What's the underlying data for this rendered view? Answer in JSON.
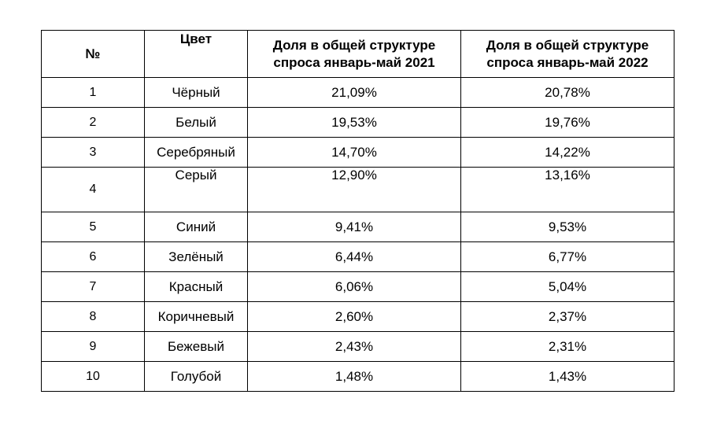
{
  "table": {
    "headers": [
      "№",
      "Цвет",
      "Доля в общей структуре спроса январь-май 2021",
      "Доля в общей структуре спроса январь-май 2022"
    ],
    "rows": [
      {
        "n": "1",
        "color": "Чёрный",
        "y2021": "21,09%",
        "y2022": "20,78%"
      },
      {
        "n": "2",
        "color": "Белый",
        "y2021": "19,53%",
        "y2022": "19,76%"
      },
      {
        "n": "3",
        "color": "Серебряный",
        "y2021": "14,70%",
        "y2022": "14,22%"
      },
      {
        "n": "4",
        "color": "Серый",
        "y2021": "12,90%",
        "y2022": "13,16%"
      },
      {
        "n": "5",
        "color": "Синий",
        "y2021": "9,41%",
        "y2022": "9,53%"
      },
      {
        "n": "6",
        "color": "Зелёный",
        "y2021": "6,44%",
        "y2022": "6,77%"
      },
      {
        "n": "7",
        "color": "Красный",
        "y2021": "6,06%",
        "y2022": "5,04%"
      },
      {
        "n": "8",
        "color": "Коричневый",
        "y2021": "2,60%",
        "y2022": "2,37%"
      },
      {
        "n": "9",
        "color": "Бежевый",
        "y2021": "2,43%",
        "y2022": "2,31%"
      },
      {
        "n": "10",
        "color": "Голубой",
        "y2021": "1,48%",
        "y2022": "1,43%"
      }
    ]
  }
}
